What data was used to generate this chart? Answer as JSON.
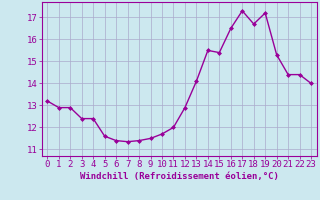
{
  "x": [
    0,
    1,
    2,
    3,
    4,
    5,
    6,
    7,
    8,
    9,
    10,
    11,
    12,
    13,
    14,
    15,
    16,
    17,
    18,
    19,
    20,
    21,
    22,
    23
  ],
  "y": [
    13.2,
    12.9,
    12.9,
    12.4,
    12.4,
    11.6,
    11.4,
    11.35,
    11.4,
    11.5,
    11.7,
    12.0,
    12.9,
    14.1,
    15.5,
    15.4,
    16.5,
    17.3,
    16.7,
    17.2,
    15.3,
    14.4,
    14.4,
    14.0
  ],
  "line_color": "#990099",
  "marker": "D",
  "marker_size": 2,
  "xlabel": "Windchill (Refroidissement éolien,°C)",
  "ylabel_ticks": [
    11,
    12,
    13,
    14,
    15,
    16,
    17
  ],
  "ylim": [
    10.7,
    17.7
  ],
  "xlim": [
    -0.5,
    23.5
  ],
  "bg_color": "#cce8ef",
  "grid_color": "#aaaacc",
  "tick_fontsize": 6.5,
  "xlabel_fontsize": 6.5,
  "line_width": 1.0
}
